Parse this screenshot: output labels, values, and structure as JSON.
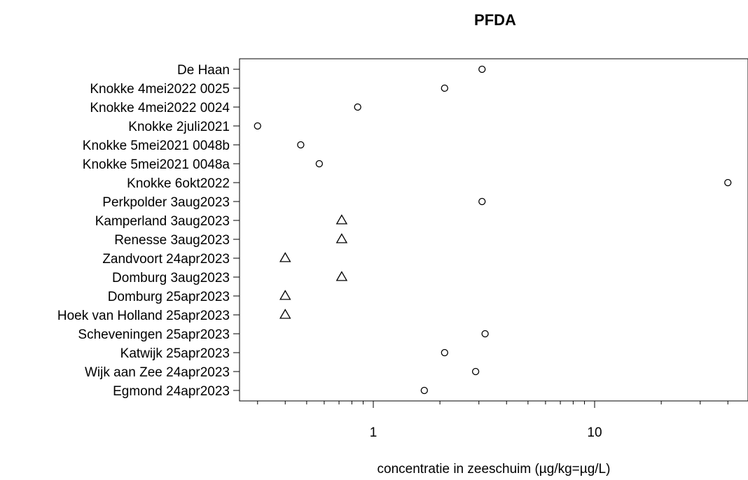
{
  "chart_data": {
    "type": "scatter",
    "title": "PFDA",
    "xlabel": "concentratie in zeeschuim (µg/kg=µg/L)",
    "ylabel": "",
    "x_scale": "log",
    "xlim": [
      0.27,
      45
    ],
    "x_tick_labels": [
      "1",
      "10"
    ],
    "x_ticks_major": [
      1,
      10
    ],
    "x_ticks_minor": [
      0.3,
      0.4,
      0.5,
      0.6,
      0.7,
      0.8,
      0.9,
      2,
      3,
      4,
      5,
      6,
      7,
      8,
      9,
      20,
      30,
      40
    ],
    "grid": false,
    "legend": "none",
    "marker_colors": {
      "stroke": "#000000",
      "fill": "none"
    },
    "points": [
      {
        "label": "De Haan",
        "x": 3.1,
        "marker": "circle"
      },
      {
        "label": "Knokke 4mei2022 0025",
        "x": 2.1,
        "marker": "circle"
      },
      {
        "label": "Knokke 4mei2022 0024",
        "x": 0.85,
        "marker": "circle"
      },
      {
        "label": "Knokke 2juli2021",
        "x": 0.3,
        "marker": "circle"
      },
      {
        "label": "Knokke 5mei2021 0048b",
        "x": 0.47,
        "marker": "circle"
      },
      {
        "label": "Knokke 5mei2021 0048a",
        "x": 0.57,
        "marker": "circle"
      },
      {
        "label": "Knokke 6okt2022",
        "x": 40,
        "marker": "circle"
      },
      {
        "label": "Perkpolder 3aug2023",
        "x": 3.1,
        "marker": "circle"
      },
      {
        "label": "Kamperland 3aug2023",
        "x": 0.72,
        "marker": "triangle"
      },
      {
        "label": "Renesse 3aug2023",
        "x": 0.72,
        "marker": "triangle"
      },
      {
        "label": "Zandvoort 24apr2023",
        "x": 0.4,
        "marker": "triangle"
      },
      {
        "label": "Domburg 3aug2023",
        "x": 0.72,
        "marker": "triangle"
      },
      {
        "label": "Domburg 25apr2023",
        "x": 0.4,
        "marker": "triangle"
      },
      {
        "label": "Hoek van Holland 25apr2023",
        "x": 0.4,
        "marker": "triangle"
      },
      {
        "label": "Scheveningen 25apr2023",
        "x": 3.2,
        "marker": "circle"
      },
      {
        "label": "Katwijk 25apr2023",
        "x": 2.1,
        "marker": "circle"
      },
      {
        "label": "Wijk aan Zee 24apr2023",
        "x": 2.9,
        "marker": "circle"
      },
      {
        "label": "Egmond 24apr2023",
        "x": 1.7,
        "marker": "circle"
      }
    ]
  }
}
